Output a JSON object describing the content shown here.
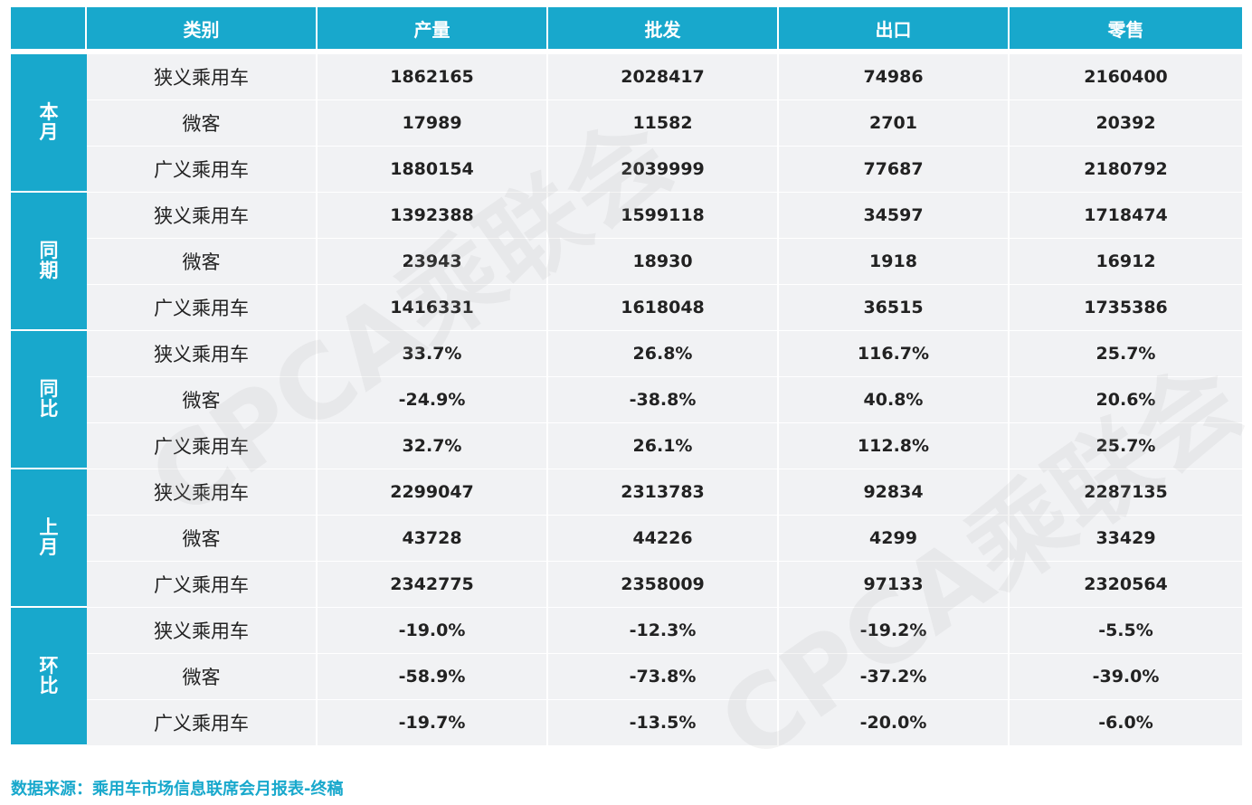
{
  "table": {
    "headers": [
      "",
      "类别",
      "产量",
      "批发",
      "出口",
      "零售"
    ],
    "groups": [
      {
        "label": "本月",
        "rows": [
          {
            "category": "狭义乘用车",
            "values": [
              "1862165",
              "2028417",
              "74986",
              "2160400"
            ]
          },
          {
            "category": "微客",
            "values": [
              "17989",
              "11582",
              "2701",
              "20392"
            ]
          },
          {
            "category": "广义乘用车",
            "values": [
              "1880154",
              "2039999",
              "77687",
              "2180792"
            ]
          }
        ]
      },
      {
        "label": "同期",
        "rows": [
          {
            "category": "狭义乘用车",
            "values": [
              "1392388",
              "1599118",
              "34597",
              "1718474"
            ]
          },
          {
            "category": "微客",
            "values": [
              "23943",
              "18930",
              "1918",
              "16912"
            ]
          },
          {
            "category": "广义乘用车",
            "values": [
              "1416331",
              "1618048",
              "36515",
              "1735386"
            ]
          }
        ]
      },
      {
        "label": "同比",
        "rows": [
          {
            "category": "狭义乘用车",
            "values": [
              "33.7%",
              "26.8%",
              "116.7%",
              "25.7%"
            ]
          },
          {
            "category": "微客",
            "values": [
              "-24.9%",
              "-38.8%",
              "40.8%",
              "20.6%"
            ]
          },
          {
            "category": "广义乘用车",
            "values": [
              "32.7%",
              "26.1%",
              "112.8%",
              "25.7%"
            ]
          }
        ]
      },
      {
        "label": "上月",
        "rows": [
          {
            "category": "狭义乘用车",
            "values": [
              "2299047",
              "2313783",
              "92834",
              "2287135"
            ]
          },
          {
            "category": "微客",
            "values": [
              "43728",
              "44226",
              "4299",
              "33429"
            ]
          },
          {
            "category": "广义乘用车",
            "values": [
              "2342775",
              "2358009",
              "97133",
              "2320564"
            ]
          }
        ]
      },
      {
        "label": "环比",
        "rows": [
          {
            "category": "狭义乘用车",
            "values": [
              "-19.0%",
              "-12.3%",
              "-19.2%",
              "-5.5%"
            ]
          },
          {
            "category": "微客",
            "values": [
              "-58.9%",
              "-73.8%",
              "-37.2%",
              "-39.0%"
            ]
          },
          {
            "category": "广义乘用车",
            "values": [
              "-19.7%",
              "-13.5%",
              "-20.0%",
              "-6.0%"
            ]
          }
        ]
      }
    ]
  },
  "watermark": "CPCA乘联会",
  "source_note": "数据来源：乘用车市场信息联席会月报表-终稿",
  "colors": {
    "header_bg": "#18a8cc",
    "cell_bg": "#f1f2f4",
    "source_text": "#18a8cc"
  }
}
